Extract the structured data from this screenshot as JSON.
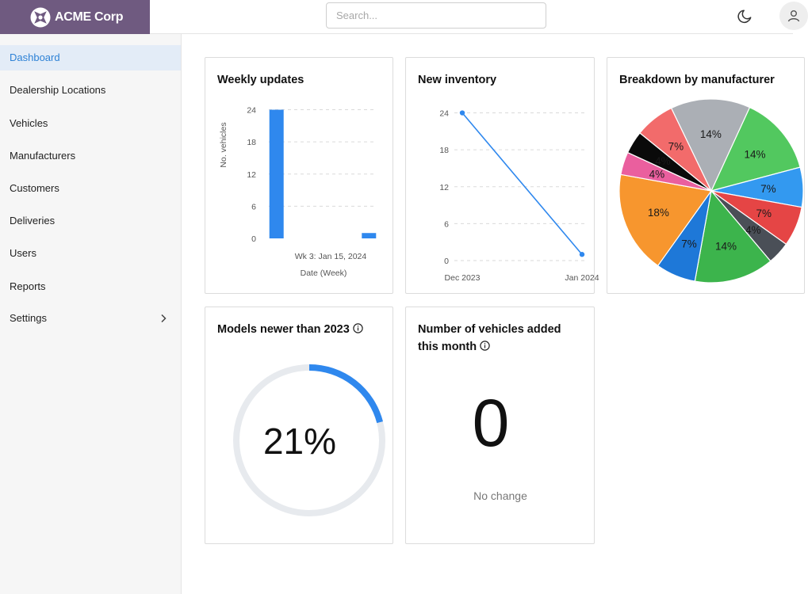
{
  "brand": {
    "name": "ACME Corp",
    "logo_icon": "gear-shuriken-icon",
    "color": "#6f5a80"
  },
  "search": {
    "placeholder": "Search..."
  },
  "header_icons": [
    "moon-icon",
    "user-icon"
  ],
  "sidebar": {
    "items": [
      {
        "label": "Dashboard",
        "active": true
      },
      {
        "label": "Dealership Locations"
      },
      {
        "label": "Vehicles"
      },
      {
        "label": "Manufacturers"
      },
      {
        "label": "Customers"
      },
      {
        "label": "Deliveries"
      },
      {
        "label": "Users"
      },
      {
        "label": "Reports"
      },
      {
        "label": "Settings",
        "has_submenu": true
      }
    ]
  },
  "cards": {
    "weekly": {
      "title": "Weekly updates"
    },
    "inventory": {
      "title": "New inventory"
    },
    "breakdown": {
      "title": "Breakdown by manufacturer"
    },
    "models": {
      "title": "Models newer than 2023",
      "value": "21%",
      "fraction": 0.21
    },
    "added": {
      "title": "Number of vehicles added this month",
      "value": "0",
      "subtext": "No change"
    }
  },
  "chart_data": [
    {
      "type": "bar",
      "title": "Weekly updates",
      "ylabel": "No. vehicles",
      "xlabel": "Date (Week)",
      "tick_label": "Wk 3: Jan 15, 2024",
      "yticks": [
        0,
        6,
        12,
        18,
        24
      ],
      "ylim": [
        0,
        26
      ],
      "values": [
        24,
        0,
        0,
        0,
        0,
        0,
        1
      ],
      "color": "#2f88ee",
      "grid": true
    },
    {
      "type": "line",
      "title": "New inventory",
      "x": [
        "Dec 2023",
        "Jan 2024"
      ],
      "y": [
        24,
        1
      ],
      "yticks": [
        0,
        6,
        12,
        18,
        24
      ],
      "ylim": [
        0,
        26
      ],
      "color": "#2f88ee",
      "grid": true
    },
    {
      "type": "pie",
      "title": "Breakdown by manufacturer",
      "slices": [
        {
          "value": 14,
          "label": "14%",
          "color": "#52c85f"
        },
        {
          "value": 7,
          "label": "7%",
          "color": "#3399f0"
        },
        {
          "value": 7,
          "label": "7%",
          "color": "#e54545"
        },
        {
          "value": 4,
          "label": "4%",
          "color": "#4a4f57"
        },
        {
          "value": 14,
          "label": "14%",
          "color": "#3cb44c"
        },
        {
          "value": 7,
          "label": "7%",
          "color": "#1e78d8"
        },
        {
          "value": 18,
          "label": "18%",
          "color": "#f7962e"
        },
        {
          "value": 4,
          "label": "4%",
          "color": "#ea5f9e"
        },
        {
          "value": 4,
          "label": "4%",
          "color": "#0a0a0a"
        },
        {
          "value": 7,
          "label": "7%",
          "color": "#f26b6b"
        },
        {
          "value": 14,
          "label": "14%",
          "color": "#abafb5"
        }
      ]
    }
  ]
}
